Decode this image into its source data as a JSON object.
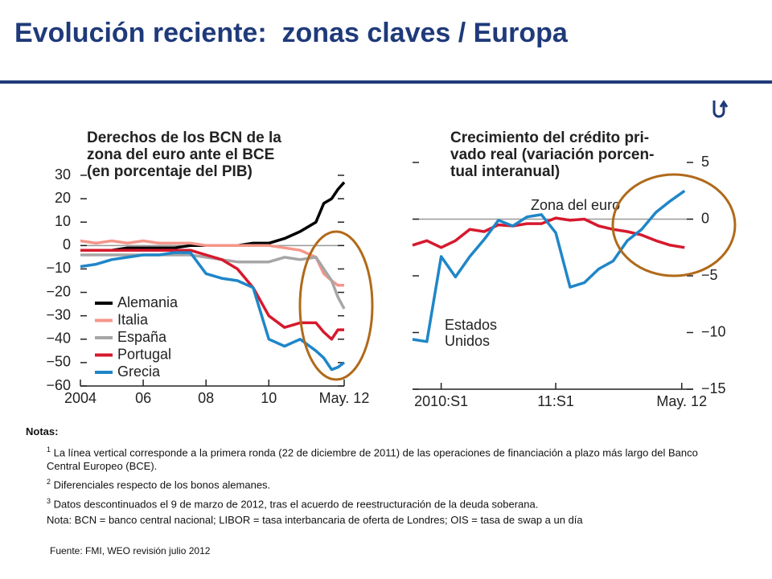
{
  "title": "Evolución reciente:  zonas claves / Europa",
  "chart_data": [
    {
      "type": "line",
      "title_lines": [
        "Derechos de los BCN de la",
        "zona del euro ante el BCE",
        "(en porcentaje del PIB)"
      ],
      "x": [
        2004,
        2004.5,
        2005,
        2005.5,
        2006,
        2006.5,
        2007,
        2007.5,
        2008,
        2008.5,
        2009,
        2009.5,
        2010,
        2010.5,
        2011,
        2011.5,
        2011.75,
        2012,
        2012.2,
        2012.4
      ],
      "series": [
        {
          "name": "Alemania",
          "color": "#000000",
          "values": [
            -2,
            -2,
            -2,
            -1,
            -1,
            -1,
            -1,
            0,
            0,
            0,
            0,
            1,
            1,
            3,
            6,
            10,
            18,
            20,
            24,
            27
          ]
        },
        {
          "name": "Italia",
          "color": "#f4968a",
          "values": [
            2,
            1,
            2,
            1,
            2,
            1,
            1,
            1,
            0,
            0,
            0,
            0,
            0,
            -1,
            -2,
            -5,
            -12,
            -15,
            -17,
            -17
          ]
        },
        {
          "name": "España",
          "color": "#a6a6a6",
          "values": [
            -4,
            -4,
            -4,
            -4,
            -4,
            -4,
            -4,
            -4,
            -5,
            -6,
            -7,
            -7,
            -7,
            -5,
            -6,
            -5,
            -10,
            -15,
            -22,
            -27
          ]
        },
        {
          "name": "Portugal",
          "color": "#d7192d",
          "values": [
            -2,
            -2,
            -2,
            -2,
            -2,
            -2,
            -2,
            -2,
            -4,
            -6,
            -10,
            -18,
            -30,
            -35,
            -33,
            -33,
            -37,
            -40,
            -36,
            -36
          ]
        },
        {
          "name": "Grecia",
          "color": "#1f86c8",
          "values": [
            -9,
            -8,
            -6,
            -5,
            -4,
            -4,
            -3,
            -3,
            -12,
            -14,
            -15,
            -18,
            -40,
            -43,
            -40,
            -45,
            -48,
            -53,
            -52,
            -50
          ]
        }
      ],
      "xlim": [
        2004,
        2012.4
      ],
      "xticks": [
        {
          "value": 2004,
          "label": "2004"
        },
        {
          "value": 2006,
          "label": "06"
        },
        {
          "value": 2008,
          "label": "08"
        },
        {
          "value": 2010,
          "label": "10"
        },
        {
          "value": 2012.4,
          "label": "May. 12"
        }
      ],
      "ylim": [
        -60,
        30
      ],
      "yticks": [
        {
          "value": -60,
          "label": "−60"
        },
        {
          "value": -50,
          "label": "−50"
        },
        {
          "value": -40,
          "label": "−40"
        },
        {
          "value": -30,
          "label": "−30"
        },
        {
          "value": -20,
          "label": "−20"
        },
        {
          "value": -10,
          "label": "−10"
        },
        0,
        10,
        20,
        30
      ],
      "legend": "lower left"
    },
    {
      "type": "line",
      "title_lines": [
        "Crecimiento del crédito pri-",
        "vado real (variación porcen-",
        "tual interanual)"
      ],
      "x": [
        2009.75,
        2009.875,
        2010,
        2010.125,
        2010.25,
        2010.375,
        2010.5,
        2010.625,
        2010.75,
        2010.875,
        2011,
        2011.125,
        2011.25,
        2011.375,
        2011.5,
        2011.625,
        2011.75,
        2011.875,
        2012,
        2012.125
      ],
      "series": [
        {
          "name": "Zona del euro",
          "color": "#d7192d",
          "values": [
            -2.3,
            -1.9,
            -2.5,
            -1.9,
            -0.9,
            -1.1,
            -0.5,
            -0.6,
            -0.4,
            -0.4,
            0.1,
            -0.1,
            0,
            -0.6,
            -0.9,
            -1.1,
            -1.4,
            -1.9,
            -2.3,
            -2.5
          ]
        },
        {
          "name": "Estados Unidos",
          "color": "#1f86c8",
          "values": [
            -10.6,
            -10.8,
            -3.3,
            -5.1,
            -3.3,
            -1.8,
            -0.1,
            -0.6,
            0.2,
            0.4,
            -1.2,
            -6,
            -5.6,
            -4.4,
            -3.7,
            -1.9,
            -0.9,
            0.6,
            1.6,
            2.5
          ]
        }
      ],
      "xlim": [
        2009.75,
        2012.2
      ],
      "xticks": [
        {
          "value": 2010,
          "label": "2010:S1"
        },
        {
          "value": 2011,
          "label": "11:S1"
        },
        {
          "value": 2012.1,
          "label": "May. 12"
        }
      ],
      "ylim": [
        -15,
        5
      ],
      "yticks": [
        {
          "value": -15,
          "label": "−15"
        },
        {
          "value": -10,
          "label": "−10"
        },
        {
          "value": -5,
          "label": "−5"
        },
        0,
        5
      ]
    }
  ],
  "notes": {
    "heading": "Notas:",
    "items": [
      {
        "sup": "1",
        "text": " La línea vertical corresponde a la primera ronda (22 de diciembre de 2011) de las operaciones de financiación a plazo más largo del Banco Central Europeo (BCE)."
      },
      {
        "sup": "2",
        "text": " Diferenciales respecto de los bonos alemanes."
      },
      {
        "sup": "3",
        "text": " Datos descontinuados el 9 de marzo de 2012, tras el acuerdo de reestructuración de la deuda soberana."
      }
    ],
    "final": "Nota: BCN = banco central nacional; LIBOR = tasa interbancaria de oferta de Londres; OIS = tasa de swap a un día"
  },
  "source": "Fuente: FMI, WEO revisión julio 2012"
}
